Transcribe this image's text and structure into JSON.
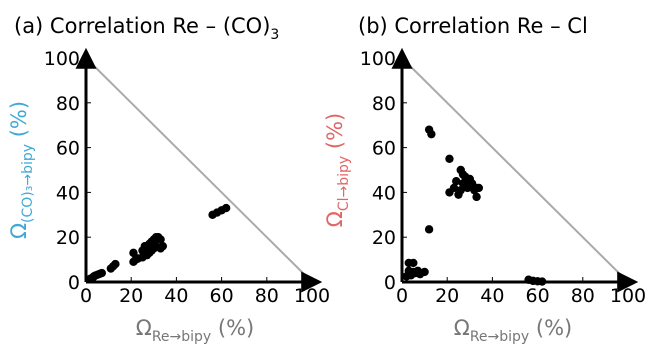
{
  "chart_data": [
    {
      "type": "scatter",
      "title": "(a) Correlation Re – (CO)",
      "title_subscript": "3",
      "xlabel": {
        "symbol": "Ω",
        "subscript": "Re→bipy",
        "unit": "(%)"
      },
      "ylabel": {
        "symbol": "Ω",
        "subscript": "(CO)₃→bipy",
        "unit": "(%)",
        "color": "#3fa9d6"
      },
      "xlim": [
        0,
        100
      ],
      "ylim": [
        0,
        100
      ],
      "xticks": [
        "0",
        "20",
        "40",
        "60",
        "80",
        "100"
      ],
      "yticks": [
        "0",
        "20",
        "40",
        "60",
        "80",
        "100"
      ],
      "reference_line": {
        "from": [
          0,
          100
        ],
        "to": [
          100,
          0
        ],
        "color": "#aaaaaa"
      },
      "grid": false,
      "points": [
        [
          2,
          1.5
        ],
        [
          3,
          2
        ],
        [
          3.5,
          2.5
        ],
        [
          4,
          2.8
        ],
        [
          5,
          3.2
        ],
        [
          6,
          3.6
        ],
        [
          7,
          4
        ],
        [
          11,
          6
        ],
        [
          12,
          7
        ],
        [
          13,
          8
        ],
        [
          21,
          9
        ],
        [
          22,
          10
        ],
        [
          23,
          10.5
        ],
        [
          25,
          11
        ],
        [
          27,
          12
        ],
        [
          28,
          13
        ],
        [
          29,
          14
        ],
        [
          30,
          15
        ],
        [
          31,
          16
        ],
        [
          33,
          15
        ],
        [
          34,
          16
        ],
        [
          21,
          13
        ],
        [
          25,
          14
        ],
        [
          26,
          16
        ],
        [
          27,
          15
        ],
        [
          28,
          17
        ],
        [
          29,
          18
        ],
        [
          30,
          19
        ],
        [
          31,
          20
        ],
        [
          32,
          20
        ],
        [
          33,
          19
        ],
        [
          30,
          17
        ],
        [
          56,
          30
        ],
        [
          58,
          31
        ],
        [
          60,
          32
        ],
        [
          62,
          33
        ]
      ]
    },
    {
      "type": "scatter",
      "title": "(b) Correlation Re – Cl",
      "xlabel": {
        "symbol": "Ω",
        "subscript": "Re→bipy",
        "unit": "(%)"
      },
      "ylabel": {
        "symbol": "Ω",
        "subscript": "Cl→bipy",
        "unit": "(%)",
        "color": "#e06666"
      },
      "xlim": [
        0,
        100
      ],
      "ylim": [
        0,
        100
      ],
      "xticks": [
        "0",
        "20",
        "40",
        "60",
        "80",
        "100"
      ],
      "yticks": [
        "0",
        "20",
        "40",
        "60",
        "80",
        "100"
      ],
      "reference_line": {
        "from": [
          0,
          100
        ],
        "to": [
          100,
          0
        ],
        "color": "#aaaaaa"
      },
      "grid": false,
      "points": [
        [
          2,
          2.5
        ],
        [
          3,
          5
        ],
        [
          3,
          8.5
        ],
        [
          4,
          3
        ],
        [
          5,
          8.5
        ],
        [
          5,
          4.5
        ],
        [
          6,
          4
        ],
        [
          7,
          5
        ],
        [
          10,
          4.5
        ],
        [
          8,
          3.5
        ],
        [
          12,
          68
        ],
        [
          13,
          66
        ],
        [
          12,
          23.5
        ],
        [
          21,
          55
        ],
        [
          21,
          40
        ],
        [
          23,
          42
        ],
        [
          24,
          45
        ],
        [
          25,
          39
        ],
        [
          26,
          50
        ],
        [
          27,
          48
        ],
        [
          27,
          44
        ],
        [
          28,
          47
        ],
        [
          29,
          45
        ],
        [
          29,
          42
        ],
        [
          30,
          43
        ],
        [
          30,
          46
        ],
        [
          31,
          44
        ],
        [
          32,
          41
        ],
        [
          33,
          38
        ],
        [
          33,
          42
        ],
        [
          34,
          42
        ],
        [
          26,
          41
        ],
        [
          56,
          1
        ],
        [
          58,
          0.5
        ],
        [
          60,
          0.3
        ],
        [
          62,
          0.2
        ]
      ]
    }
  ]
}
